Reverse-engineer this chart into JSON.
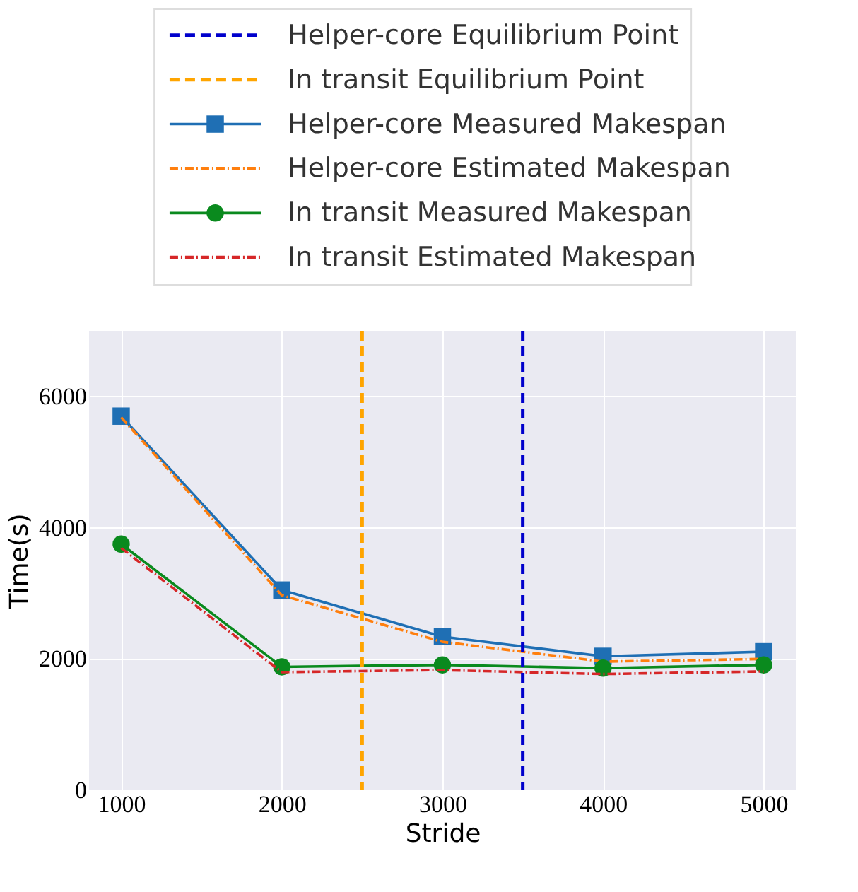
{
  "chart_data": {
    "type": "line",
    "xlabel": "Stride",
    "ylabel": "Time(s)",
    "x": [
      1000,
      2000,
      3000,
      4000,
      5000
    ],
    "xlim": [
      800,
      5200
    ],
    "xticks": [
      1000,
      2000,
      3000,
      4000,
      5000
    ],
    "ylim": [
      0,
      7000
    ],
    "yticks": [
      0,
      2000,
      4000,
      6000
    ],
    "grid": true,
    "legend": "top",
    "ref_lines": [
      {
        "axis": "x",
        "value": 3500,
        "label": "Helper-core Equilibrium Point",
        "color": "#0000cc",
        "line_style": "dashed"
      },
      {
        "axis": "x",
        "value": 2500,
        "label": "In transit Equilibrium Point",
        "color": "#ffa500",
        "line_style": "dashed"
      }
    ],
    "series": [
      {
        "name": "Helper-core Measured Makespan",
        "color": "#1f6fb4",
        "marker": "square",
        "line_style": "solid",
        "values": [
          5700,
          3050,
          2340,
          2040,
          2110
        ]
      },
      {
        "name": "Helper-core Estimated Makespan",
        "color": "#ff7f0e",
        "marker": "none",
        "line_style": "dashdot",
        "values": [
          5680,
          2970,
          2260,
          1960,
          2000
        ]
      },
      {
        "name": "In transit Measured Makespan",
        "color": "#0a8a1e",
        "marker": "circle",
        "line_style": "solid",
        "values": [
          3750,
          1880,
          1910,
          1860,
          1910
        ]
      },
      {
        "name": "In transit Estimated Makespan",
        "color": "#d62728",
        "marker": "none",
        "line_style": "dashdot",
        "values": [
          3690,
          1800,
          1830,
          1770,
          1810
        ]
      }
    ]
  }
}
